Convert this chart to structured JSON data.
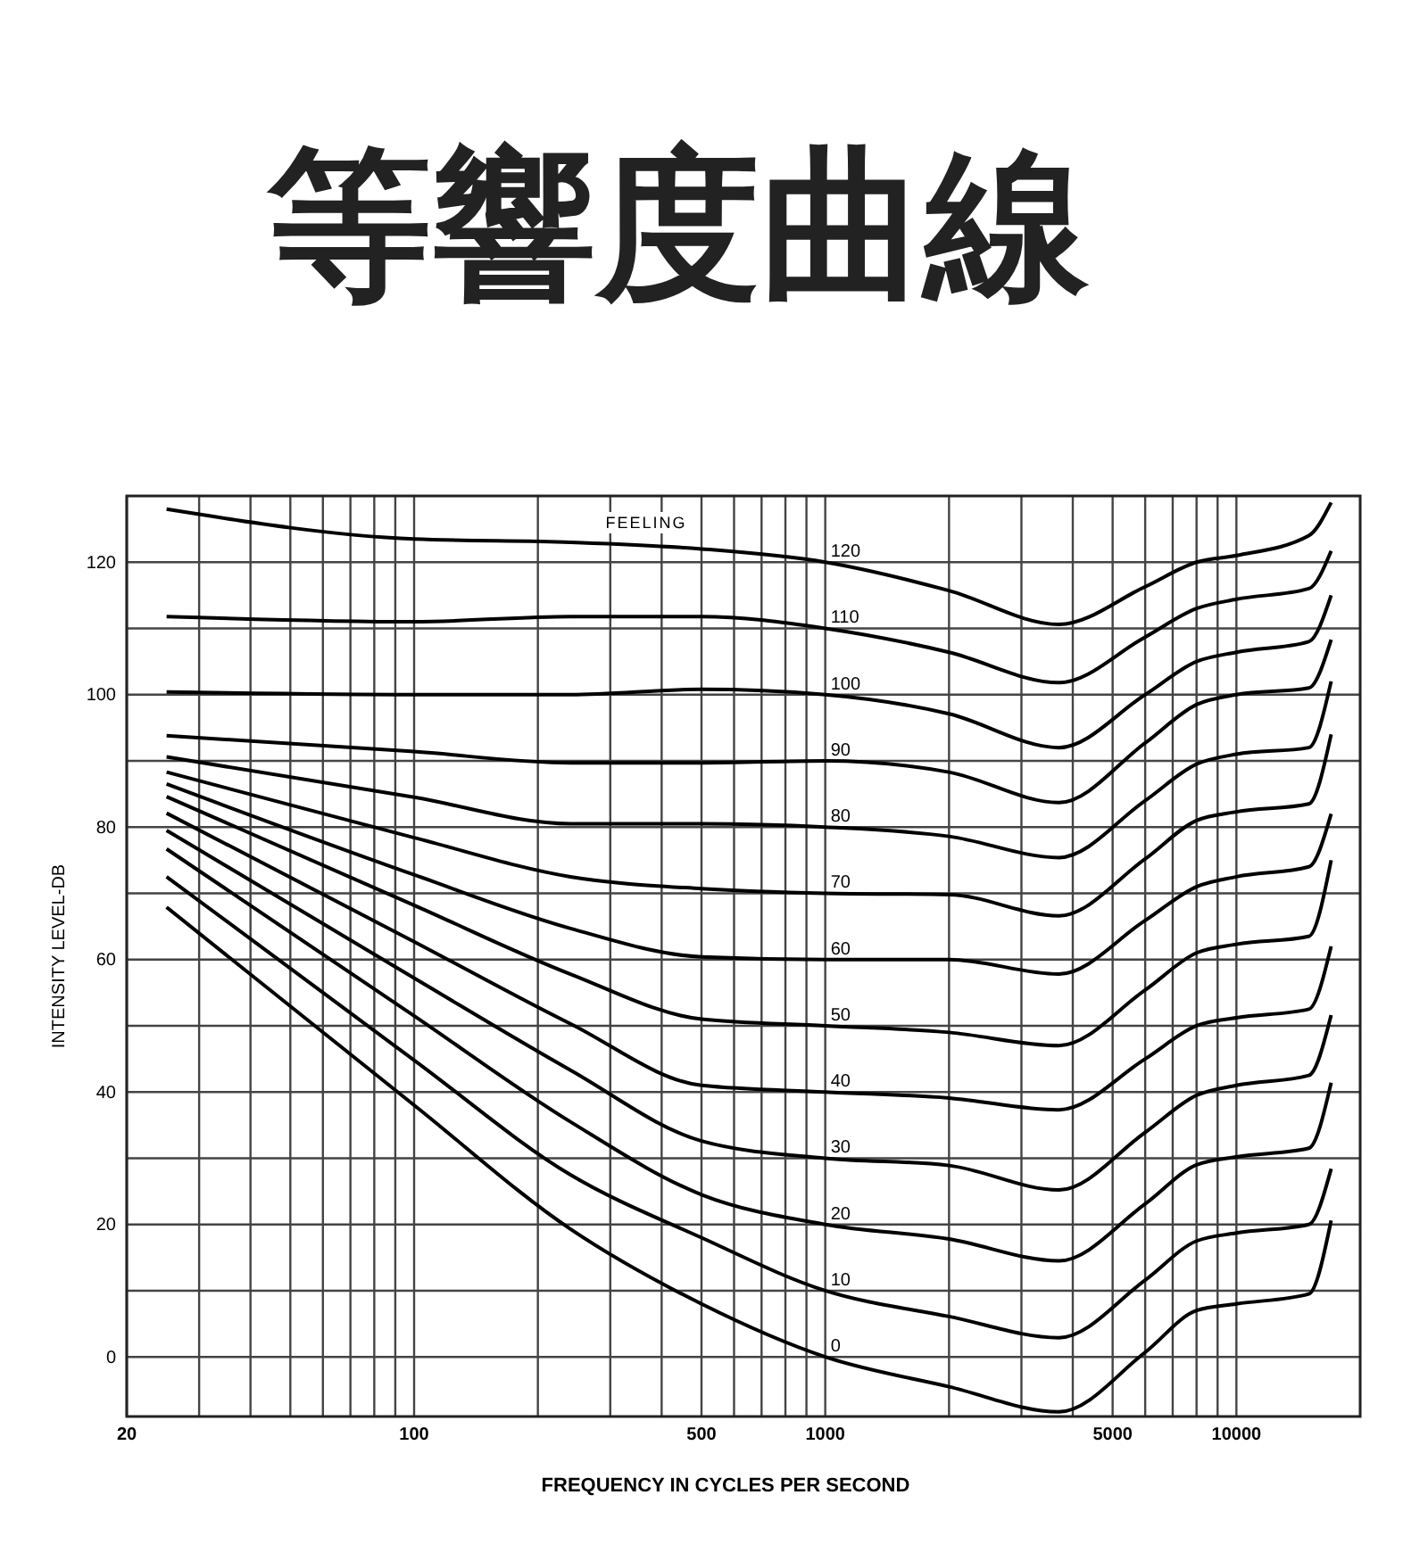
{
  "chart_data": {
    "type": "line",
    "title": "等響度曲線",
    "xlabel": "FREQUENCY IN CYCLES PER SECOND",
    "ylabel": "INTENSITY LEVEL-DB",
    "log": "x",
    "xlim": [
      20,
      20000
    ],
    "ylim": [
      -9,
      130
    ],
    "xticks": [
      20,
      {
        "value": 30,
        "label": null
      },
      {
        "value": 40,
        "label": null
      },
      {
        "value": 50,
        "label": null
      },
      {
        "value": 60,
        "label": null
      },
      {
        "value": 70,
        "label": null
      },
      {
        "value": 80,
        "label": null
      },
      {
        "value": 90,
        "label": null
      },
      100,
      {
        "value": 200,
        "label": null
      },
      {
        "value": 300,
        "label": null
      },
      {
        "value": 400,
        "label": null
      },
      500,
      {
        "value": 600,
        "label": null
      },
      {
        "value": 700,
        "label": null
      },
      {
        "value": 800,
        "label": null
      },
      {
        "value": 900,
        "label": null
      },
      1000,
      {
        "value": 2000,
        "label": null
      },
      {
        "value": 3000,
        "label": null
      },
      {
        "value": 4000,
        "label": null
      },
      5000,
      {
        "value": 6000,
        "label": null
      },
      {
        "value": 7000,
        "label": null
      },
      {
        "value": 8000,
        "label": null
      },
      {
        "value": 9000,
        "label": null
      },
      10000
    ],
    "yticks": [
      0,
      {
        "value": 10,
        "label": null
      },
      20,
      {
        "value": 30,
        "label": null
      },
      40,
      {
        "value": 50,
        "label": null
      },
      60,
      {
        "value": 70,
        "label": null
      },
      80,
      {
        "value": 90,
        "label": null
      },
      100,
      {
        "value": 110,
        "label": null
      },
      120
    ],
    "grid": true,
    "line_style": "solid",
    "x": [
      25,
      100,
      240,
      500,
      1000,
      2000,
      3700,
      6000,
      8000,
      10000,
      15000,
      17000
    ],
    "series": [
      {
        "name": "0",
        "color": "#000000",
        "values": [
          67.9,
          38,
          19.3,
          8,
          0,
          -4.5,
          -8.3,
          0.7,
          7,
          8,
          9.5,
          20.6
        ]
      },
      {
        "name": "10",
        "color": "#000000",
        "values": [
          72.5,
          44.8,
          27.5,
          18,
          10,
          6.1,
          2.9,
          11.6,
          17.5,
          18.7,
          20,
          28.4
        ]
      },
      {
        "name": "20",
        "color": "#000000",
        "values": [
          76.7,
          51.5,
          35.5,
          24.5,
          20,
          17.8,
          14.5,
          23.1,
          29,
          30.2,
          31.5,
          41.4
        ]
      },
      {
        "name": "30",
        "color": "#000000",
        "values": [
          79.5,
          57.2,
          43.3,
          32.6,
          30,
          28.9,
          25.2,
          33.9,
          39.5,
          41,
          42.5,
          51.6
        ]
      },
      {
        "name": "40",
        "color": "#000000",
        "values": [
          82.1,
          62.7,
          50.3,
          41,
          40,
          39.1,
          37.3,
          45,
          50,
          51.2,
          52.5,
          62
        ]
      },
      {
        "name": "50",
        "color": "#000000",
        "values": [
          84.6,
          68.2,
          57.8,
          51,
          50,
          49,
          47,
          55.4,
          61,
          62.3,
          63.5,
          75
        ]
      },
      {
        "name": "60",
        "color": "#000000",
        "values": [
          86.5,
          72.8,
          64.7,
          60.4,
          60,
          60,
          57.8,
          65.9,
          71,
          72.5,
          74,
          82
        ]
      },
      {
        "name": "70",
        "color": "#000000",
        "values": [
          88.3,
          78.4,
          72.5,
          70.7,
          70,
          69.8,
          66.6,
          75.2,
          81,
          82.3,
          83.5,
          94
        ]
      },
      {
        "name": "80",
        "color": "#000000",
        "values": [
          90.6,
          84.5,
          80.5,
          80.5,
          80,
          78.6,
          75.4,
          84,
          89.5,
          91,
          92,
          102
        ]
      },
      {
        "name": "90",
        "color": "#000000",
        "values": [
          93.8,
          91.4,
          89.7,
          89.7,
          90,
          88.3,
          83.7,
          92.7,
          98.5,
          100,
          101,
          108.3
        ]
      },
      {
        "name": "100",
        "color": "#000000",
        "values": [
          100.4,
          100,
          100,
          100.8,
          100,
          97.1,
          92,
          100,
          105,
          106.4,
          108,
          115
        ]
      },
      {
        "name": "110",
        "color": "#000000",
        "values": [
          111.8,
          111,
          111.8,
          111.8,
          110,
          106.4,
          101.8,
          108.7,
          113,
          114.4,
          116,
          121.7
        ]
      },
      {
        "name": "120",
        "color": "#000000",
        "values": [
          128,
          123.5,
          123,
          122,
          120,
          115.7,
          110.6,
          116.3,
          120,
          121,
          124,
          129
        ]
      }
    ],
    "annotations": [
      "FEELING"
    ]
  }
}
